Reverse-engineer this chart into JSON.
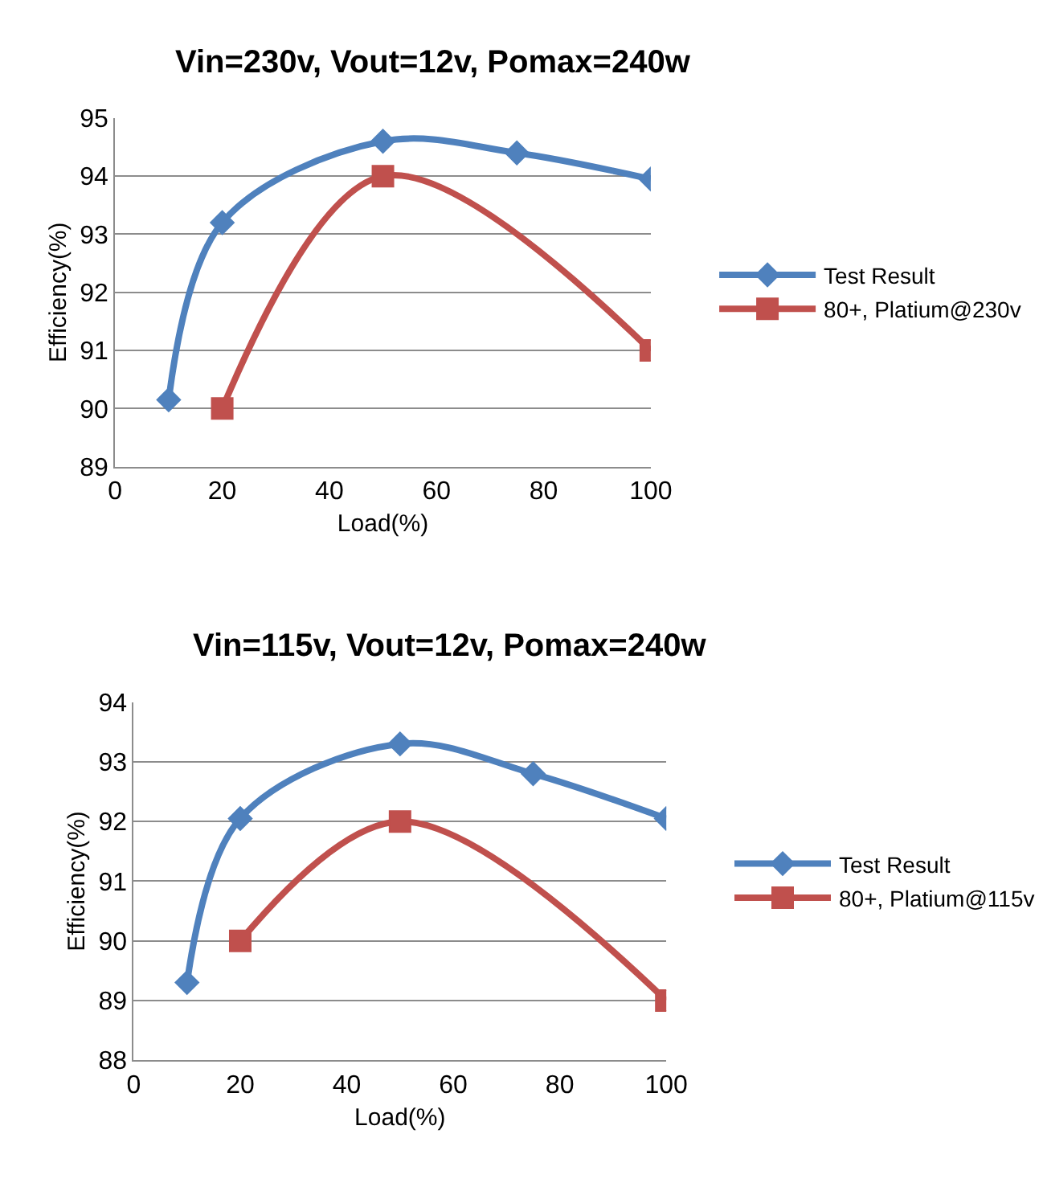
{
  "chart_data": [
    {
      "type": "line",
      "title": "Vin=230v, Vout=12v, Pomax=240w",
      "xlabel": "Load(%)",
      "ylabel": "Efficiency(%)",
      "xlim": [
        0,
        100
      ],
      "xticks": [
        0,
        20,
        40,
        60,
        80,
        100
      ],
      "ylim": [
        89,
        95
      ],
      "yticks": [
        89,
        90,
        91,
        92,
        93,
        94,
        95
      ],
      "grid": "y",
      "legend": "right",
      "series": [
        {
          "name": "Test Result",
          "color": "#4f81bd",
          "marker": "diamond",
          "x": [
            10,
            20,
            50,
            75,
            100
          ],
          "values": [
            90.15,
            93.2,
            94.6,
            94.4,
            93.95
          ]
        },
        {
          "name": "80+, Platium@230v",
          "color": "#c0504d",
          "marker": "square",
          "x": [
            20,
            50,
            100
          ],
          "values": [
            90,
            94,
            91
          ]
        }
      ]
    },
    {
      "type": "line",
      "title": "Vin=115v, Vout=12v, Pomax=240w",
      "xlabel": "Load(%)",
      "ylabel": "Efficiency(%)",
      "xlim": [
        0,
        100
      ],
      "xticks": [
        0,
        20,
        40,
        60,
        80,
        100
      ],
      "ylim": [
        88,
        94
      ],
      "yticks": [
        88,
        89,
        90,
        91,
        92,
        93,
        94
      ],
      "grid": "y",
      "legend": "right",
      "series": [
        {
          "name": "Test Result",
          "color": "#4f81bd",
          "marker": "diamond",
          "x": [
            10,
            20,
            50,
            75,
            100
          ],
          "values": [
            89.3,
            92.05,
            93.3,
            92.8,
            92.05
          ]
        },
        {
          "name": "80+, Platium@115v",
          "color": "#c0504d",
          "marker": "square",
          "x": [
            20,
            50,
            100
          ],
          "values": [
            90,
            92,
            89
          ]
        }
      ]
    }
  ]
}
